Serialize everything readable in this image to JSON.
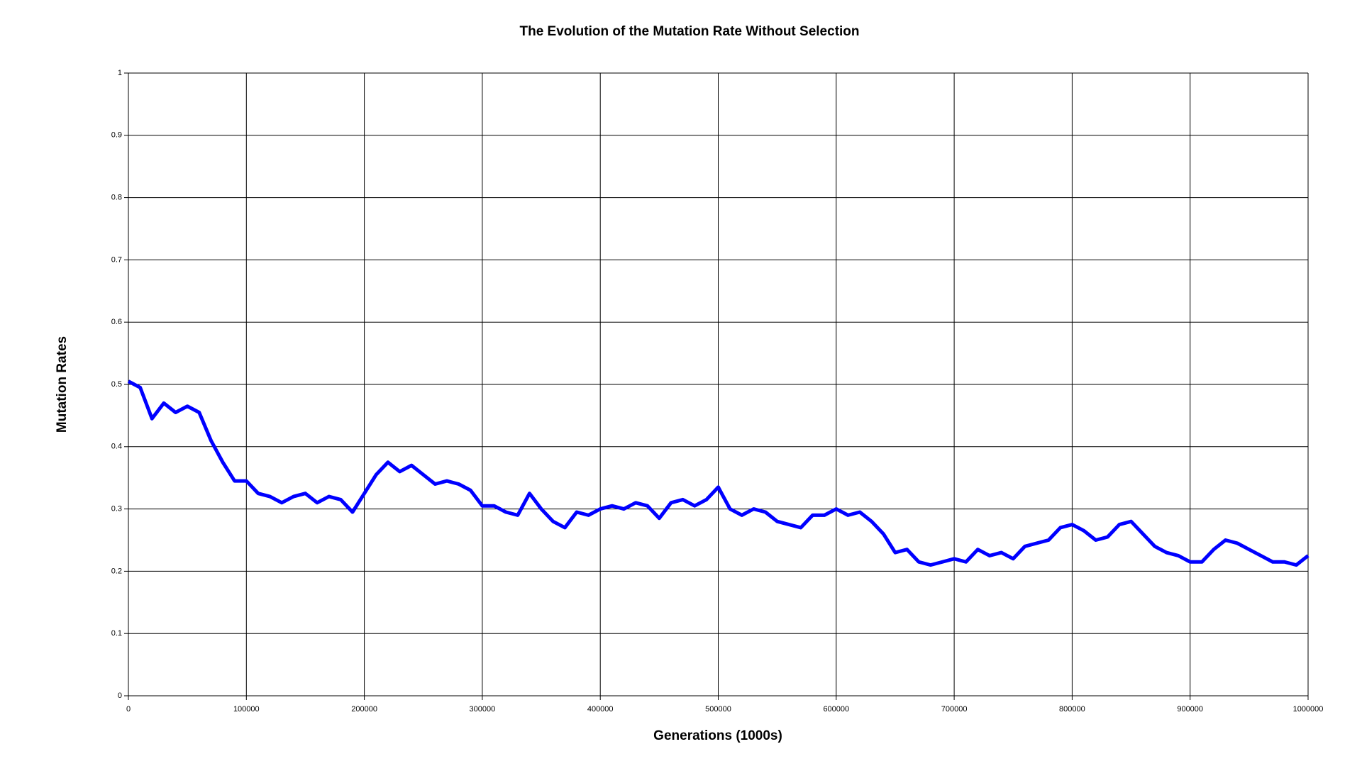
{
  "chart_data": {
    "type": "line",
    "title": "The Evolution of the Mutation Rate Without Selection",
    "x_label": "Generations (1000s)",
    "y_label": "Mutation Rates",
    "x": [
      0,
      10000,
      20000,
      30000,
      40000,
      50000,
      60000,
      70000,
      80000,
      90000,
      100000,
      110000,
      120000,
      130000,
      140000,
      150000,
      160000,
      170000,
      180000,
      190000,
      200000,
      210000,
      220000,
      230000,
      240000,
      250000,
      260000,
      270000,
      280000,
      290000,
      300000,
      310000,
      320000,
      330000,
      340000,
      350000,
      360000,
      370000,
      380000,
      390000,
      400000,
      410000,
      420000,
      430000,
      440000,
      450000,
      460000,
      470000,
      480000,
      490000,
      500000,
      510000,
      520000,
      530000,
      540000,
      550000,
      560000,
      570000,
      580000,
      590000,
      600000,
      610000,
      620000,
      630000,
      640000,
      650000,
      660000,
      670000,
      680000,
      690000,
      700000,
      710000,
      720000,
      730000,
      740000,
      750000,
      760000,
      770000,
      780000,
      790000,
      800000,
      810000,
      820000,
      830000,
      840000,
      850000,
      860000,
      870000,
      880000,
      890000,
      900000,
      910000,
      920000,
      930000,
      940000,
      950000,
      960000,
      970000,
      980000,
      990000,
      1000000
    ],
    "series": [
      {
        "name": "Mutation Rate",
        "color": "#0000ff",
        "values": [
          0.505,
          0.495,
          0.445,
          0.47,
          0.455,
          0.465,
          0.455,
          0.41,
          0.375,
          0.345,
          0.345,
          0.325,
          0.32,
          0.31,
          0.32,
          0.325,
          0.31,
          0.32,
          0.315,
          0.295,
          0.325,
          0.355,
          0.375,
          0.36,
          0.37,
          0.355,
          0.34,
          0.345,
          0.34,
          0.33,
          0.305,
          0.305,
          0.295,
          0.29,
          0.325,
          0.3,
          0.28,
          0.27,
          0.295,
          0.29,
          0.3,
          0.305,
          0.3,
          0.31,
          0.305,
          0.285,
          0.31,
          0.315,
          0.305,
          0.315,
          0.335,
          0.3,
          0.29,
          0.3,
          0.295,
          0.28,
          0.275,
          0.27,
          0.29,
          0.29,
          0.3,
          0.29,
          0.295,
          0.28,
          0.26,
          0.23,
          0.235,
          0.215,
          0.21,
          0.215,
          0.22,
          0.215,
          0.235,
          0.225,
          0.23,
          0.22,
          0.24,
          0.245,
          0.25,
          0.27,
          0.275,
          0.265,
          0.25,
          0.255,
          0.275,
          0.28,
          0.26,
          0.24,
          0.23,
          0.225,
          0.215,
          0.215,
          0.235,
          0.25,
          0.245,
          0.235,
          0.225,
          0.215,
          0.215,
          0.21,
          0.225
        ]
      }
    ],
    "xlim": [
      0,
      1000000
    ],
    "xticks": [
      0,
      100000,
      200000,
      300000,
      400000,
      500000,
      600000,
      700000,
      800000,
      900000,
      1000000
    ],
    "ylim": [
      0,
      1
    ],
    "yticks": [
      0,
      0.1,
      0.2,
      0.3,
      0.4,
      0.5,
      0.6,
      0.7,
      0.8,
      0.9,
      1
    ],
    "grid": true
  }
}
